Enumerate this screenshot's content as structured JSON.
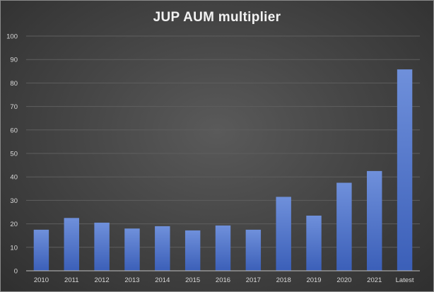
{
  "chart_data": {
    "type": "bar",
    "title": "JUP AUM multiplier",
    "xlabel": "",
    "ylabel": "",
    "categories": [
      "2010",
      "2011",
      "2012",
      "2013",
      "2014",
      "2015",
      "2016",
      "2017",
      "2018",
      "2019",
      "2020",
      "2021",
      "Latest"
    ],
    "values": [
      17.5,
      22.5,
      20.5,
      18,
      19,
      17.2,
      19.3,
      17.5,
      31.5,
      23.5,
      37.5,
      42.5,
      85.8
    ],
    "ylim": [
      0,
      100
    ],
    "yticks": [
      0,
      10,
      20,
      30,
      40,
      50,
      60,
      70,
      80,
      90,
      100
    ],
    "grid": true,
    "legend": "none",
    "colors": {
      "bar_top": "#6f90db",
      "bar_bottom": "#3b5fb8",
      "background_center": "#5a5a5a",
      "background_edge": "#2f2f2f",
      "gridline": "#5e5e5e",
      "text": "#d9d9d9"
    }
  }
}
